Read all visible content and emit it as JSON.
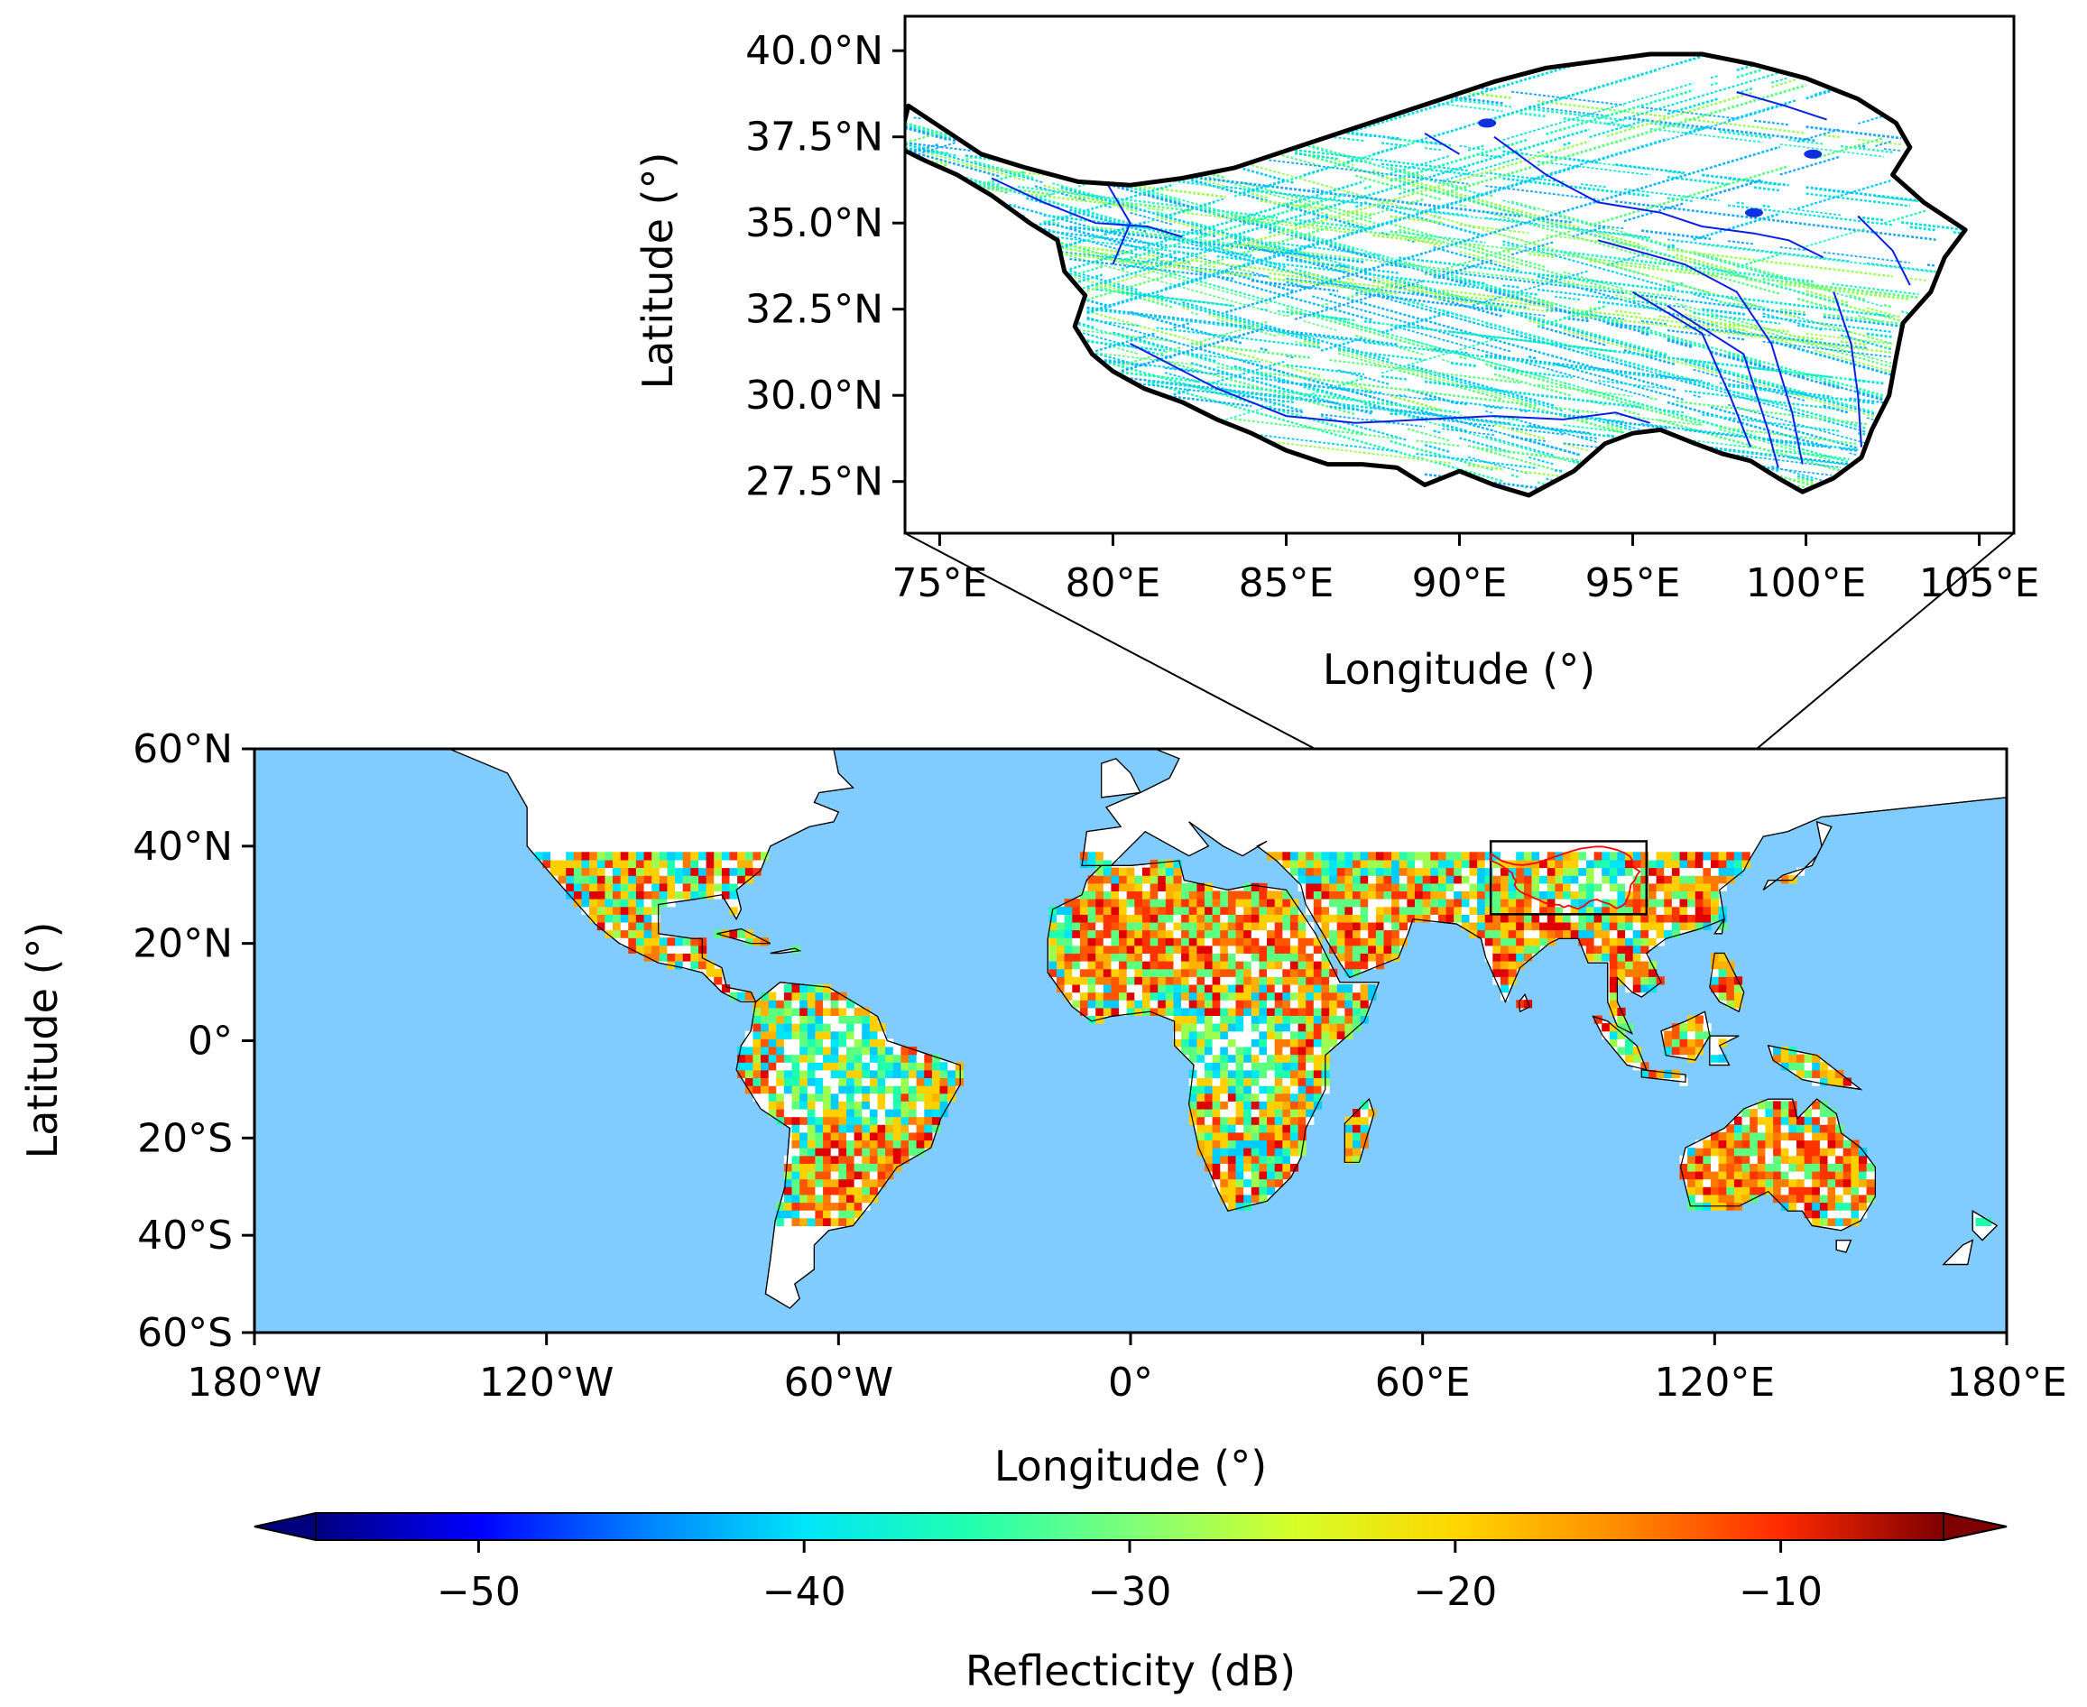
{
  "inset_map": {
    "xlabel": "Longitude (°)",
    "ylabel": "Latitude (°)",
    "x_ticks": [
      {
        "value": 75,
        "label": "75°E"
      },
      {
        "value": 80,
        "label": "80°E"
      },
      {
        "value": 85,
        "label": "85°E"
      },
      {
        "value": 90,
        "label": "90°E"
      },
      {
        "value": 95,
        "label": "95°E"
      },
      {
        "value": 100,
        "label": "100°E"
      },
      {
        "value": 105,
        "label": "105°E"
      }
    ],
    "y_ticks": [
      {
        "value": 40.0,
        "label": "40.0°N"
      },
      {
        "value": 37.5,
        "label": "37.5°N"
      },
      {
        "value": 35.0,
        "label": "35.0°N"
      },
      {
        "value": 32.5,
        "label": "32.5°N"
      },
      {
        "value": 30.0,
        "label": "30.0°N"
      },
      {
        "value": 27.5,
        "label": "27.5°N"
      }
    ],
    "xlim": [
      74,
      106
    ],
    "ylim": [
      26,
      41
    ],
    "region_outline_color": "#000000",
    "river_color": "#0a1fe6"
  },
  "main_map": {
    "xlabel": "Longitude (°)",
    "ylabel": "Latitude (°)",
    "x_ticks": [
      {
        "value": -180,
        "label": "180°W"
      },
      {
        "value": -120,
        "label": "120°W"
      },
      {
        "value": -60,
        "label": "60°W"
      },
      {
        "value": 0,
        "label": "0°"
      },
      {
        "value": 60,
        "label": "60°E"
      },
      {
        "value": 120,
        "label": "120°E"
      },
      {
        "value": 180,
        "label": "180°E"
      }
    ],
    "y_ticks": [
      {
        "value": 60,
        "label": "60°N"
      },
      {
        "value": 40,
        "label": "40°N"
      },
      {
        "value": 20,
        "label": "20°N"
      },
      {
        "value": 0,
        "label": "0°"
      },
      {
        "value": -20,
        "label": "20°S"
      },
      {
        "value": -40,
        "label": "40°S"
      },
      {
        "value": -60,
        "label": "60°S"
      }
    ],
    "xlim": [
      -180,
      180
    ],
    "ylim": [
      -60,
      60
    ],
    "data_lat_range": [
      -38,
      38
    ],
    "zoom_box": {
      "lon": [
        74,
        106
      ],
      "lat": [
        26,
        41
      ]
    },
    "ocean_color": "#80ccff",
    "land_no_data_color": "#ffffff"
  },
  "colorbar": {
    "label": "Reflecticity (dB)",
    "range": [
      -55,
      -5
    ],
    "extend": "both",
    "colormap": "jet",
    "ticks": [
      {
        "value": -50,
        "label": "−50"
      },
      {
        "value": -40,
        "label": "−40"
      },
      {
        "value": -30,
        "label": "−30"
      },
      {
        "value": -20,
        "label": "−20"
      },
      {
        "value": -10,
        "label": "−10"
      }
    ],
    "stops": [
      "#00007f",
      "#0000ff",
      "#007fff",
      "#00e5f8",
      "#20ffb0",
      "#7dff7a",
      "#d4ff2a",
      "#ffd700",
      "#ff8c00",
      "#ff2a00",
      "#7f0000"
    ]
  }
}
